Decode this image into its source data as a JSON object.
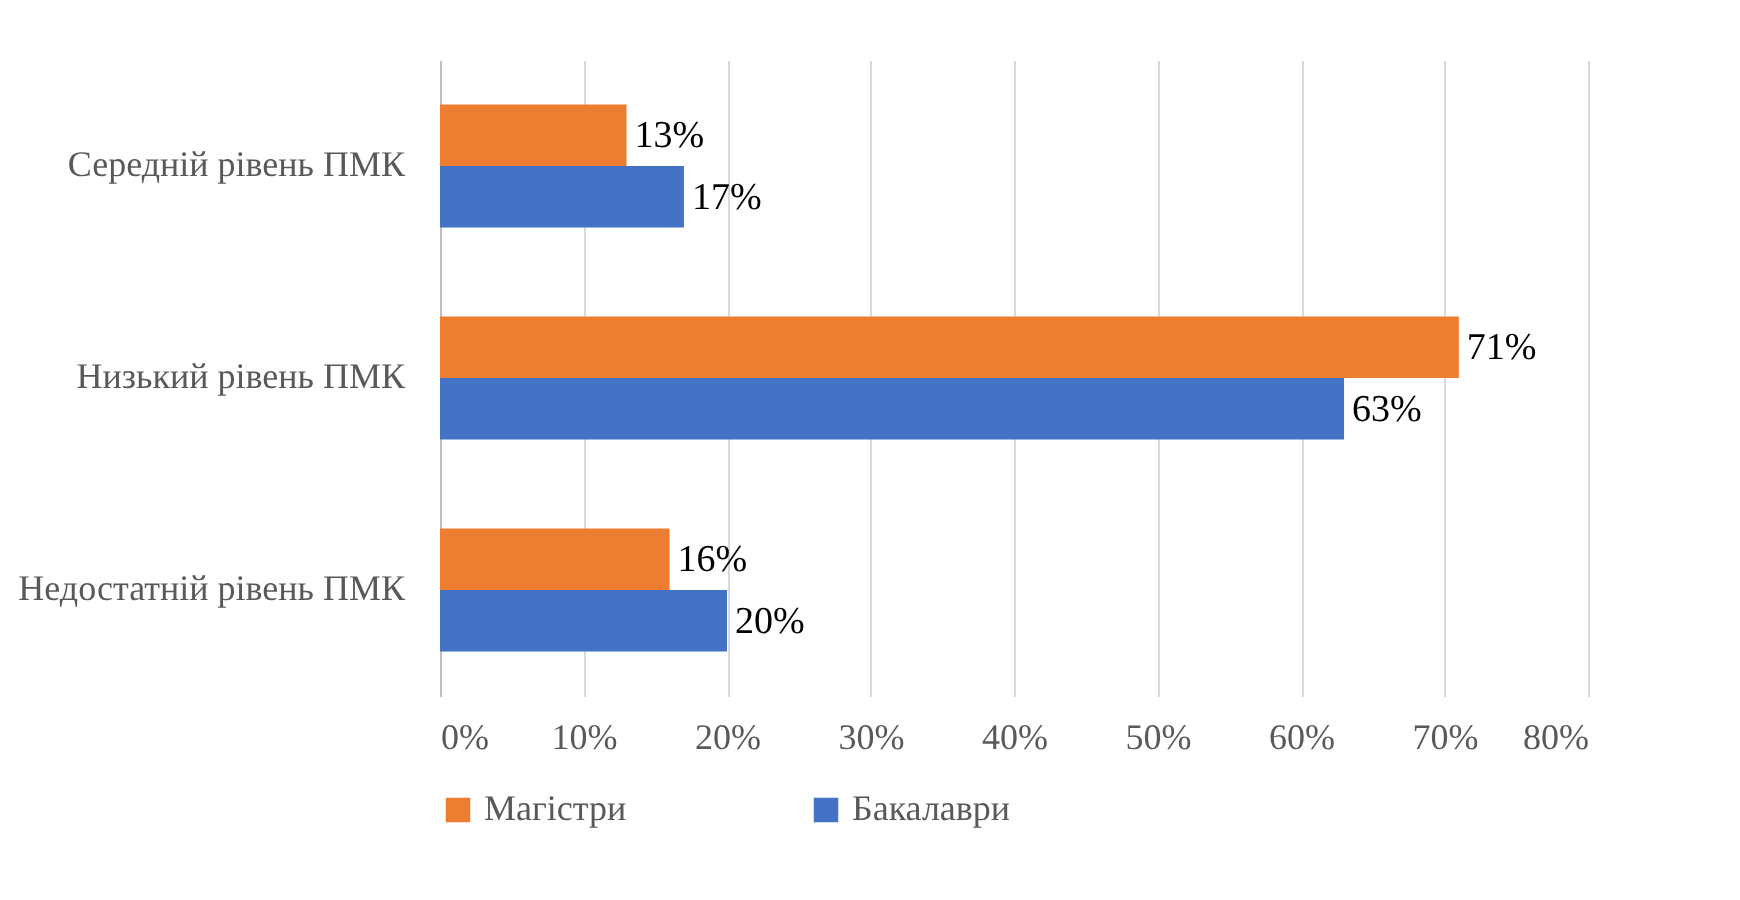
{
  "chart_data": {
    "type": "bar",
    "orientation": "horizontal",
    "categories": [
      "Середній рівень ПМК",
      "Низький рівень ПМК",
      "Недостатній рівень ПМК"
    ],
    "series": [
      {
        "name": "Магістри",
        "color": "#ed7d31",
        "values": [
          13,
          71,
          16
        ],
        "value_labels": [
          "13%",
          "71%",
          "16%"
        ]
      },
      {
        "name": "Бакалаври",
        "color": "#4472c4",
        "values": [
          17,
          63,
          20
        ],
        "value_labels": [
          "17%",
          "63%",
          "20%"
        ]
      }
    ],
    "xlim": [
      0,
      80
    ],
    "xticks": [
      {
        "value": 0,
        "label": "0%"
      },
      {
        "value": 10,
        "label": "10%"
      },
      {
        "value": 20,
        "label": "20%"
      },
      {
        "value": 30,
        "label": "30%"
      },
      {
        "value": 40,
        "label": "40%"
      },
      {
        "value": 50,
        "label": "50%"
      },
      {
        "value": 60,
        "label": "60%"
      },
      {
        "value": 70,
        "label": "70%"
      },
      {
        "value": 80,
        "label": "80%"
      }
    ],
    "grid": "x",
    "legend": "bottom"
  }
}
